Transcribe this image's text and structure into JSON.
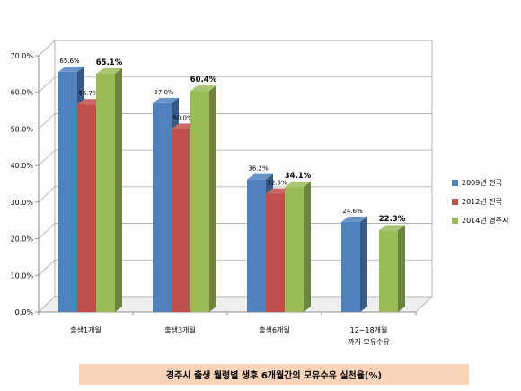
{
  "chart_data": {
    "type": "bar",
    "categories": [
      "출생1개월",
      "출생3개월",
      "출생6개월",
      [
        "12~18개월",
        "까지 모유수유"
      ]
    ],
    "series": [
      {
        "name": "2009년 전국",
        "color": "#4f81bd",
        "values": [
          65.6,
          57.0,
          36.2,
          24.6
        ],
        "labels": [
          "65.6%",
          "57.0%",
          "36.2%",
          "24.6%"
        ]
      },
      {
        "name": "2012년 전국",
        "color": "#c0504d",
        "values": [
          56.7,
          50.0,
          32.3,
          null
        ],
        "labels": [
          "56.7%",
          "50.0%",
          "32.3%",
          ""
        ]
      },
      {
        "name": "2014년 경주시",
        "color": "#9bbb59",
        "values": [
          65.1,
          60.4,
          34.1,
          22.3
        ],
        "labels": [
          "65.1%",
          "60.4%",
          "34.1%",
          "22.3%"
        ]
      }
    ],
    "ylim": [
      0,
      70
    ],
    "yticks": [
      "0.0%",
      "10.0%",
      "20.0%",
      "30.0%",
      "40.0%",
      "50.0%",
      "60.0%",
      "70.0%"
    ],
    "grid": true,
    "legend_position": "right"
  },
  "caption": "경주시 출생 월령별 생후 6개월간의 모유수유 실천율(%)"
}
